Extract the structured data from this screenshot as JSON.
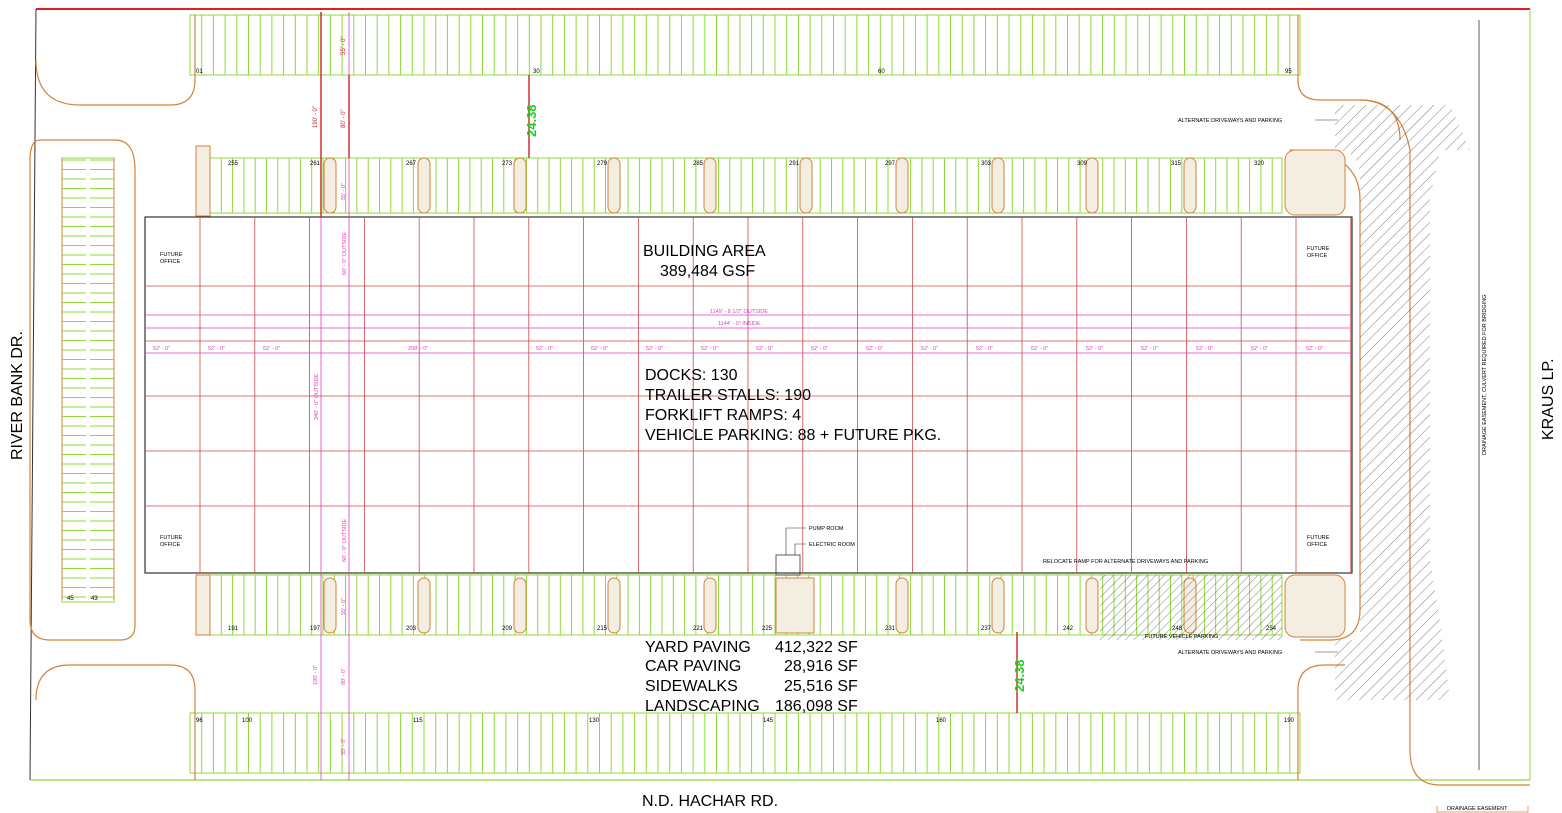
{
  "streets": {
    "west": "RIVER BANK DR.",
    "east": "KRAUS LP.",
    "south": "N.D. HACHAR RD."
  },
  "building": {
    "area_title": "BUILDING AREA",
    "area_value": "389,484 GSF",
    "stats": [
      "DOCKS: 130",
      "TRAILER STALLS: 190",
      "FORKLIFT RAMPS: 4",
      "VEHICLE PARKING: 88 + FUTURE PKG."
    ],
    "offices": [
      "FUTURE",
      "OFFICE"
    ],
    "pump_room": "PUMP ROOM",
    "electric_room": "ELECTRIC ROOM"
  },
  "paving": [
    {
      "label": "YARD PAVING",
      "value": "412,322 SF"
    },
    {
      "label": "CAR PAVING",
      "value": "28,916 SF"
    },
    {
      "label": "SIDEWALKS",
      "value": "25,516 SF"
    },
    {
      "label": "LANDSCAPING",
      "value": "186,098 SF"
    }
  ],
  "notes": {
    "alt_driveways": "ALTERNATE DRIVEWAYS AND PARKING",
    "relocate_ramp": "RELOCATE RAMP FOR ALTERNATE DRIVEWAYS AND PARKING",
    "future_parking": "FUTURE VEHICLE PARKING",
    "drainage": "DRAINAGE EASEMENT, CULVERT REQUIRED FOR BRIDGING",
    "drainage_legend": "DRAINAGE EASEMENT"
  },
  "dimensions": {
    "outside_width": "1149' - 8 1/2\" OUTSIDE",
    "inside_width": "1144' - 0\" INSIDE",
    "bay": "52' - 0\"",
    "bay_wide": "208' - 0\"",
    "depth_outside": "340' - 0\" OUTSIDE",
    "dock_outside": "60' - 0\" OUTSIDE",
    "yard_total": "190' - 0\"",
    "yard_drive": "80' - 0\"",
    "stall": "55' - 0\"",
    "truck_gap": "24.38"
  },
  "stall_numbers": {
    "top_outer": [
      "01",
      "30",
      "60",
      "95"
    ],
    "top_dock": [
      "255",
      "261",
      "267",
      "273",
      "279",
      "285",
      "291",
      "297",
      "303",
      "309",
      "315",
      "320"
    ],
    "bottom_dock": [
      "191",
      "197",
      "203",
      "209",
      "215",
      "221",
      "225",
      "231",
      "237",
      "242",
      "248",
      "254"
    ],
    "bottom_outer": [
      "96",
      "100",
      "115",
      "130",
      "145",
      "160",
      "190"
    ],
    "west_car": [
      "45",
      "43"
    ]
  },
  "colors": {
    "stall_green": "#8ed83a",
    "grid_red": "#d04848",
    "dim_pink": "#e040c0",
    "curb_orange": "#d4833a",
    "dim_green": "#22cc22"
  }
}
